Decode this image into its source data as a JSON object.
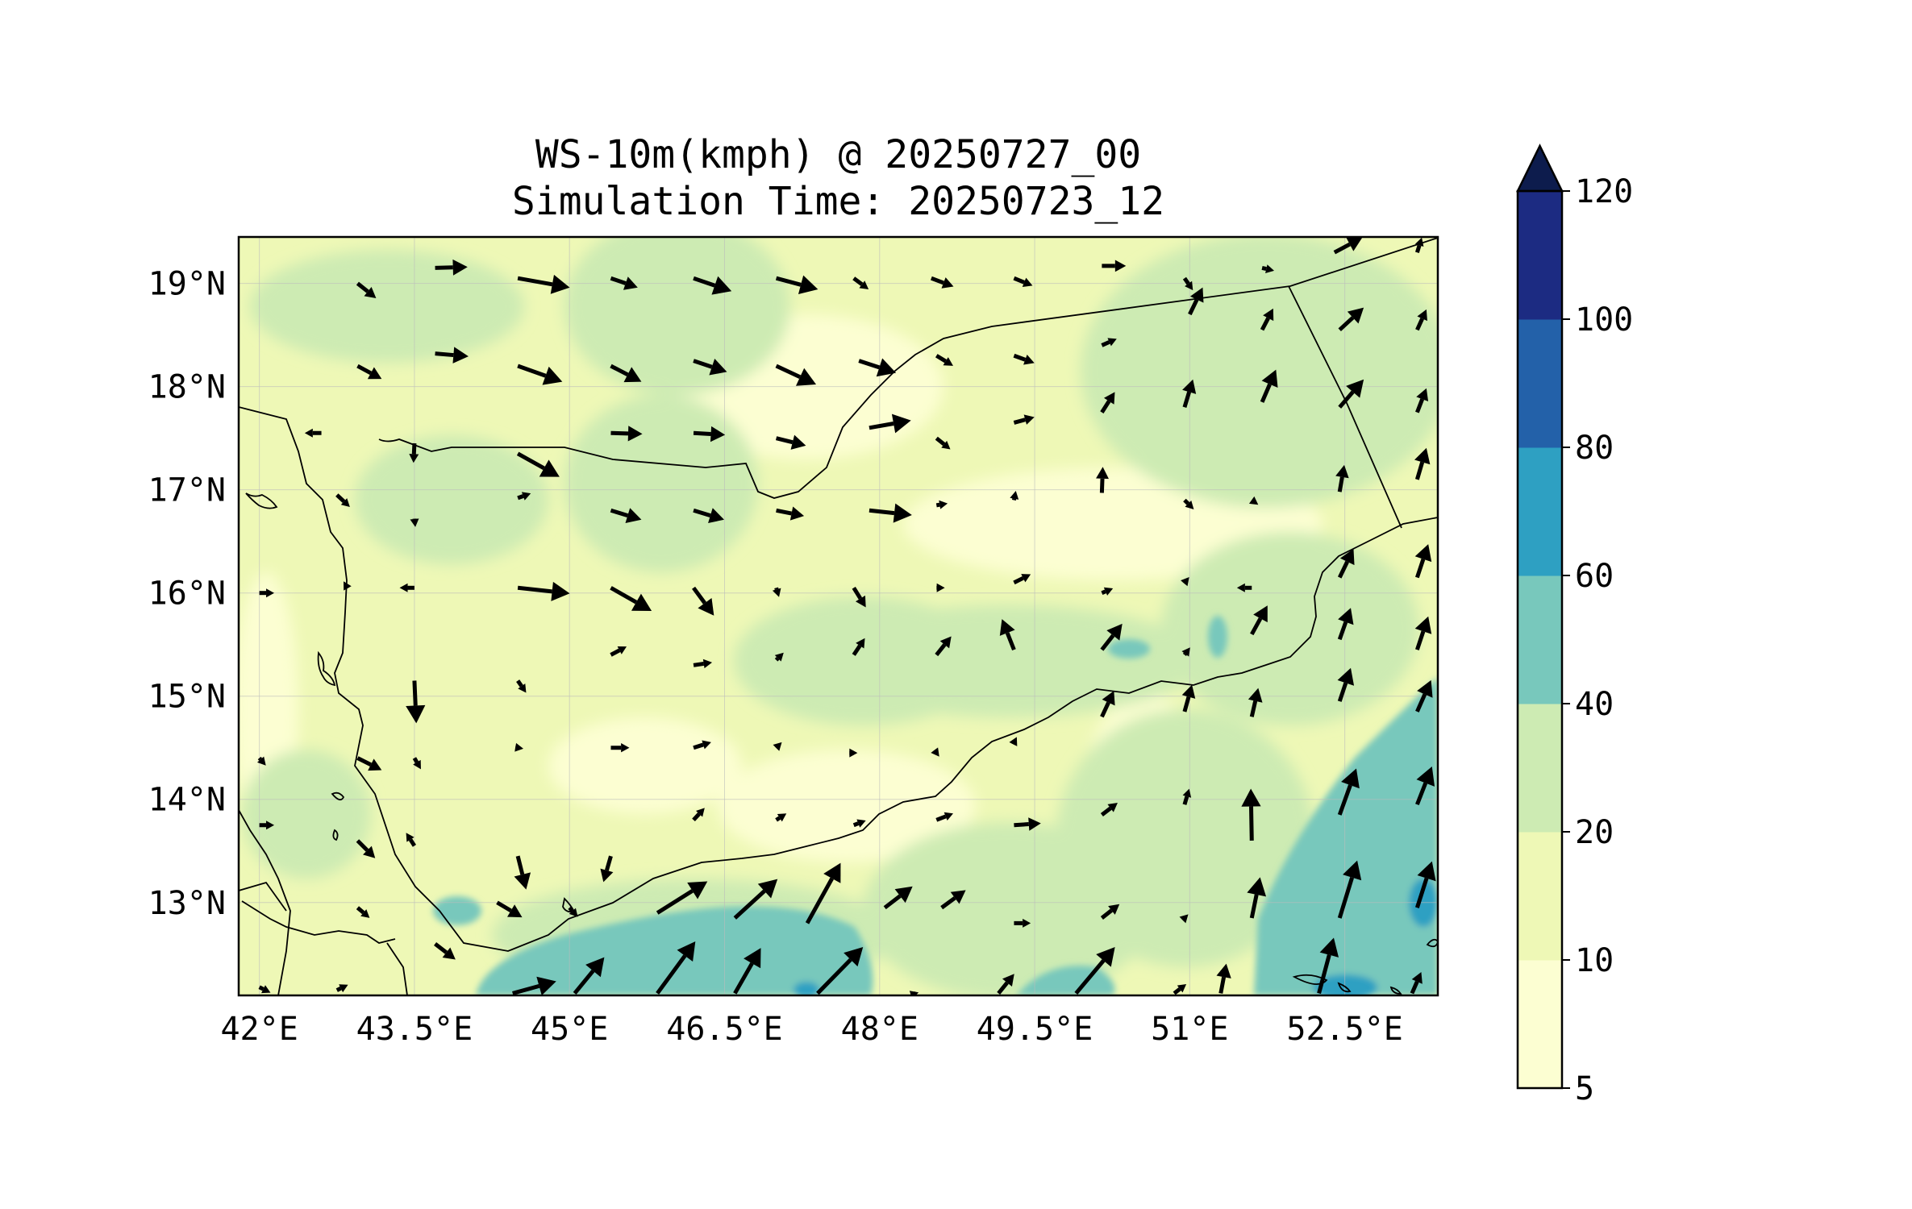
{
  "title": "WS-10m(kmph) @ 20250727_00",
  "subtitle": "Simulation Time: 20250723_12",
  "map": {
    "lon_range": [
      41.8,
      53.4
    ],
    "lat_range": [
      12.1,
      19.45
    ],
    "x_ticks": [
      "42°E",
      "43.5°E",
      "45°E",
      "46.5°E",
      "48°E",
      "49.5°E",
      "51°E",
      "52.5°E"
    ],
    "x_tick_values": [
      42,
      43.5,
      45,
      46.5,
      48,
      49.5,
      51,
      52.5
    ],
    "y_ticks": [
      "19°N",
      "18°N",
      "17°N",
      "16°N",
      "15°N",
      "14°N",
      "13°N"
    ],
    "y_tick_values": [
      19,
      18,
      17,
      16,
      15,
      14,
      13
    ],
    "gridlines": true
  },
  "colorbar": {
    "levels": [
      5,
      10,
      20,
      40,
      60,
      80,
      100,
      120
    ],
    "labels": [
      "5",
      "10",
      "20",
      "40",
      "60",
      "80",
      "100",
      "120"
    ],
    "colors": [
      "#fcfed2",
      "#eef8b6",
      "#cdebb3",
      "#78c8bc",
      "#2ea0c2",
      "#2361a9",
      "#1c2b82"
    ],
    "extend_color": "#0d1c4d",
    "extend": "max"
  },
  "wind_vectors": [
    {
      "lon": 42.95,
      "lat": 19.0,
      "u": 2.0,
      "v": -1.6
    },
    {
      "lon": 43.7,
      "lat": 19.15,
      "u": 3.5,
      "v": 0.1
    },
    {
      "lon": 44.5,
      "lat": 19.05,
      "u": 5.6,
      "v": -1.0
    },
    {
      "lon": 45.4,
      "lat": 19.05,
      "u": 2.9,
      "v": -1.0
    },
    {
      "lon": 46.2,
      "lat": 19.05,
      "u": 4.1,
      "v": -1.4
    },
    {
      "lon": 47.0,
      "lat": 19.05,
      "u": 4.5,
      "v": -1.2
    },
    {
      "lon": 47.75,
      "lat": 19.05,
      "u": 1.6,
      "v": -1.2
    },
    {
      "lon": 48.5,
      "lat": 19.05,
      "u": 2.4,
      "v": -0.9
    },
    {
      "lon": 49.3,
      "lat": 19.05,
      "u": 2.0,
      "v": -0.8
    },
    {
      "lon": 50.15,
      "lat": 19.17,
      "u": 2.6,
      "v": 0.0
    },
    {
      "lon": 50.95,
      "lat": 19.05,
      "u": 0.9,
      "v": -1.3
    },
    {
      "lon": 51.7,
      "lat": 19.15,
      "u": 1.3,
      "v": -0.3
    },
    {
      "lon": 52.4,
      "lat": 19.3,
      "u": 3.0,
      "v": 1.6
    },
    {
      "lon": 53.2,
      "lat": 19.3,
      "u": 0.5,
      "v": 1.6
    },
    {
      "lon": 42.95,
      "lat": 18.2,
      "u": 2.6,
      "v": -1.4
    },
    {
      "lon": 43.7,
      "lat": 18.32,
      "u": 3.6,
      "v": -0.3
    },
    {
      "lon": 44.5,
      "lat": 18.2,
      "u": 4.8,
      "v": -1.7
    },
    {
      "lon": 45.4,
      "lat": 18.2,
      "u": 3.3,
      "v": -1.7
    },
    {
      "lon": 46.2,
      "lat": 18.25,
      "u": 3.6,
      "v": -1.2
    },
    {
      "lon": 47.0,
      "lat": 18.2,
      "u": 4.3,
      "v": -2.0
    },
    {
      "lon": 47.8,
      "lat": 18.25,
      "u": 4.0,
      "v": -1.3
    },
    {
      "lon": 48.55,
      "lat": 18.3,
      "u": 1.8,
      "v": -1.1
    },
    {
      "lon": 49.3,
      "lat": 18.3,
      "u": 2.2,
      "v": -0.8
    },
    {
      "lon": 50.15,
      "lat": 18.4,
      "u": 1.6,
      "v": 0.7
    },
    {
      "lon": 51.0,
      "lat": 18.7,
      "u": 1.4,
      "v": 2.9
    },
    {
      "lon": 51.7,
      "lat": 18.55,
      "u": 1.2,
      "v": 2.3
    },
    {
      "lon": 52.45,
      "lat": 18.55,
      "u": 2.6,
      "v": 2.4
    },
    {
      "lon": 53.2,
      "lat": 18.55,
      "u": 1.0,
      "v": 2.2
    },
    {
      "lon": 42.6,
      "lat": 17.55,
      "u": -1.8,
      "v": 0.0
    },
    {
      "lon": 43.5,
      "lat": 17.45,
      "u": -0.1,
      "v": -2.1
    },
    {
      "lon": 44.5,
      "lat": 17.35,
      "u": 4.5,
      "v": -2.5
    },
    {
      "lon": 45.4,
      "lat": 17.55,
      "u": 3.4,
      "v": -0.1
    },
    {
      "lon": 46.2,
      "lat": 17.55,
      "u": 3.4,
      "v": -0.2
    },
    {
      "lon": 47.0,
      "lat": 17.5,
      "u": 3.2,
      "v": -0.8
    },
    {
      "lon": 47.9,
      "lat": 17.6,
      "u": 4.5,
      "v": 0.8
    },
    {
      "lon": 48.55,
      "lat": 17.5,
      "u": 1.5,
      "v": -1.2
    },
    {
      "lon": 49.3,
      "lat": 17.65,
      "u": 2.2,
      "v": 0.6
    },
    {
      "lon": 50.15,
      "lat": 17.75,
      "u": 1.4,
      "v": 2.2
    },
    {
      "lon": 50.95,
      "lat": 17.8,
      "u": 0.9,
      "v": 3.0
    },
    {
      "lon": 51.7,
      "lat": 17.85,
      "u": 1.5,
      "v": 3.5
    },
    {
      "lon": 52.45,
      "lat": 17.8,
      "u": 2.6,
      "v": 3.0
    },
    {
      "lon": 53.2,
      "lat": 17.75,
      "u": 1.0,
      "v": 2.6
    },
    {
      "lon": 42.75,
      "lat": 16.95,
      "u": 1.4,
      "v": -1.3
    },
    {
      "lon": 43.5,
      "lat": 16.72,
      "u": 0.1,
      "v": -0.9
    },
    {
      "lon": 44.5,
      "lat": 16.92,
      "u": 1.4,
      "v": 0.5
    },
    {
      "lon": 45.4,
      "lat": 16.8,
      "u": 3.3,
      "v": -1.0
    },
    {
      "lon": 46.2,
      "lat": 16.8,
      "u": 3.3,
      "v": -1.0
    },
    {
      "lon": 47.0,
      "lat": 16.8,
      "u": 3.0,
      "v": -0.6
    },
    {
      "lon": 47.9,
      "lat": 16.8,
      "u": 4.6,
      "v": -0.5
    },
    {
      "lon": 48.55,
      "lat": 16.85,
      "u": 1.2,
      "v": 0.2
    },
    {
      "lon": 49.3,
      "lat": 16.9,
      "u": 0.2,
      "v": 1.0
    },
    {
      "lon": 50.15,
      "lat": 16.97,
      "u": 0.1,
      "v": 2.8
    },
    {
      "lon": 50.95,
      "lat": 16.9,
      "u": 1.0,
      "v": -1.0
    },
    {
      "lon": 51.6,
      "lat": 16.9,
      "u": 0.7,
      "v": -0.5
    },
    {
      "lon": 52.45,
      "lat": 16.98,
      "u": 0.5,
      "v": 2.9
    },
    {
      "lon": 53.2,
      "lat": 17.1,
      "u": 1.0,
      "v": 3.4
    },
    {
      "lon": 42.0,
      "lat": 16.0,
      "u": 1.6,
      "v": 0.0
    },
    {
      "lon": 42.85,
      "lat": 16.05,
      "u": -0.4,
      "v": 0.7
    },
    {
      "lon": 43.5,
      "lat": 16.05,
      "u": -1.6,
      "v": 0.0
    },
    {
      "lon": 44.5,
      "lat": 16.05,
      "u": 5.6,
      "v": -0.6
    },
    {
      "lon": 45.4,
      "lat": 16.05,
      "u": 4.4,
      "v": -2.5
    },
    {
      "lon": 46.2,
      "lat": 16.05,
      "u": 2.2,
      "v": -3.0
    },
    {
      "lon": 47.0,
      "lat": 16.05,
      "u": 0.3,
      "v": -1.0
    },
    {
      "lon": 47.75,
      "lat": 16.05,
      "u": 1.3,
      "v": -2.1
    },
    {
      "lon": 48.55,
      "lat": 16.05,
      "u": 0.9,
      "v": 0.0
    },
    {
      "lon": 49.3,
      "lat": 16.1,
      "u": 1.8,
      "v": 0.9
    },
    {
      "lon": 50.15,
      "lat": 16.0,
      "u": 1.2,
      "v": 0.5
    },
    {
      "lon": 50.95,
      "lat": 16.1,
      "u": 0.5,
      "v": 0.6
    },
    {
      "lon": 51.6,
      "lat": 16.05,
      "u": -1.6,
      "v": 0.0
    },
    {
      "lon": 52.45,
      "lat": 16.15,
      "u": 1.5,
      "v": 3.1
    },
    {
      "lon": 53.2,
      "lat": 16.15,
      "u": 1.2,
      "v": 3.6
    },
    {
      "lon": 43.5,
      "lat": 15.15,
      "u": 0.2,
      "v": -4.6
    },
    {
      "lon": 44.5,
      "lat": 15.15,
      "u": 0.9,
      "v": -1.3
    },
    {
      "lon": 45.4,
      "lat": 15.4,
      "u": 1.7,
      "v": 0.9
    },
    {
      "lon": 46.2,
      "lat": 15.3,
      "u": 2.0,
      "v": 0.3
    },
    {
      "lon": 47.0,
      "lat": 15.35,
      "u": 0.8,
      "v": 0.8
    },
    {
      "lon": 47.75,
      "lat": 15.4,
      "u": 1.2,
      "v": 1.8
    },
    {
      "lon": 48.55,
      "lat": 15.4,
      "u": 1.6,
      "v": 2.0
    },
    {
      "lon": 49.3,
      "lat": 15.45,
      "u": -1.3,
      "v": 3.3
    },
    {
      "lon": 50.15,
      "lat": 15.45,
      "u": 2.2,
      "v": 2.8
    },
    {
      "lon": 50.95,
      "lat": 15.4,
      "u": 0.6,
      "v": 0.8
    },
    {
      "lon": 51.6,
      "lat": 15.6,
      "u": 1.7,
      "v": 3.1
    },
    {
      "lon": 52.45,
      "lat": 15.55,
      "u": 1.2,
      "v": 3.4
    },
    {
      "lon": 53.2,
      "lat": 15.45,
      "u": 1.2,
      "v": 3.6
    },
    {
      "lon": 42.0,
      "lat": 14.4,
      "u": 0.7,
      "v": -0.8
    },
    {
      "lon": 42.95,
      "lat": 14.4,
      "u": 2.6,
      "v": -1.3
    },
    {
      "lon": 43.5,
      "lat": 14.4,
      "u": 0.7,
      "v": -1.2
    },
    {
      "lon": 44.5,
      "lat": 14.5,
      "u": 0.6,
      "v": -0.1
    },
    {
      "lon": 45.4,
      "lat": 14.5,
      "u": 2.0,
      "v": 0.0
    },
    {
      "lon": 46.2,
      "lat": 14.5,
      "u": 1.9,
      "v": 0.6
    },
    {
      "lon": 47.0,
      "lat": 14.5,
      "u": 0.6,
      "v": 0.6
    },
    {
      "lon": 47.75,
      "lat": 14.45,
      "u": 0.4,
      "v": 0.0
    },
    {
      "lon": 48.55,
      "lat": 14.45,
      "u": 0.3,
      "v": -0.4
    },
    {
      "lon": 49.3,
      "lat": 14.55,
      "u": 0.3,
      "v": 0.6
    },
    {
      "lon": 50.15,
      "lat": 14.8,
      "u": 1.3,
      "v": 2.8
    },
    {
      "lon": 50.95,
      "lat": 14.85,
      "u": 0.8,
      "v": 2.9
    },
    {
      "lon": 51.6,
      "lat": 14.8,
      "u": 0.7,
      "v": 3.1
    },
    {
      "lon": 52.45,
      "lat": 14.95,
      "u": 1.2,
      "v": 3.6
    },
    {
      "lon": 53.2,
      "lat": 14.85,
      "u": 1.5,
      "v": 3.4
    },
    {
      "lon": 42.0,
      "lat": 13.75,
      "u": 1.6,
      "v": 0.0
    },
    {
      "lon": 42.95,
      "lat": 13.6,
      "u": 1.9,
      "v": -1.9
    },
    {
      "lon": 43.5,
      "lat": 13.55,
      "u": -0.9,
      "v": 1.4
    },
    {
      "lon": 44.5,
      "lat": 13.45,
      "u": 0.9,
      "v": -3.6
    },
    {
      "lon": 45.4,
      "lat": 13.45,
      "u": -0.8,
      "v": -2.8
    },
    {
      "lon": 46.2,
      "lat": 13.8,
      "u": 1.2,
      "v": 1.3
    },
    {
      "lon": 47.0,
      "lat": 13.8,
      "u": 1.1,
      "v": 0.7
    },
    {
      "lon": 47.75,
      "lat": 13.75,
      "u": 1.3,
      "v": 0.5
    },
    {
      "lon": 48.55,
      "lat": 13.8,
      "u": 1.8,
      "v": 0.7
    },
    {
      "lon": 49.3,
      "lat": 13.75,
      "u": 2.9,
      "v": 0.2
    },
    {
      "lon": 50.15,
      "lat": 13.85,
      "u": 1.7,
      "v": 1.3
    },
    {
      "lon": 50.95,
      "lat": 13.95,
      "u": 0.5,
      "v": 1.7
    },
    {
      "lon": 51.6,
      "lat": 13.6,
      "u": -0.1,
      "v": 5.6
    },
    {
      "lon": 52.45,
      "lat": 13.85,
      "u": 1.8,
      "v": 5.0
    },
    {
      "lon": 53.2,
      "lat": 13.95,
      "u": 1.6,
      "v": 4.1
    },
    {
      "lon": 42.95,
      "lat": 12.95,
      "u": 1.3,
      "v": -1.1
    },
    {
      "lon": 43.7,
      "lat": 12.6,
      "u": 2.2,
      "v": -1.7
    },
    {
      "lon": 44.3,
      "lat": 13.0,
      "u": 2.7,
      "v": -1.6
    },
    {
      "lon": 45.0,
      "lat": 12.95,
      "u": 0.9,
      "v": -1.0
    },
    {
      "lon": 45.85,
      "lat": 12.9,
      "u": 5.4,
      "v": 3.4
    },
    {
      "lon": 46.6,
      "lat": 12.85,
      "u": 4.6,
      "v": 4.2
    },
    {
      "lon": 47.3,
      "lat": 12.8,
      "u": 3.6,
      "v": 6.5
    },
    {
      "lon": 48.05,
      "lat": 12.95,
      "u": 3.0,
      "v": 2.3
    },
    {
      "lon": 48.6,
      "lat": 12.95,
      "u": 2.6,
      "v": 1.9
    },
    {
      "lon": 49.3,
      "lat": 12.8,
      "u": 1.8,
      "v": 0.0
    },
    {
      "lon": 50.15,
      "lat": 12.85,
      "u": 1.9,
      "v": 1.5
    },
    {
      "lon": 50.95,
      "lat": 12.85,
      "u": 0.4,
      "v": 0.4
    },
    {
      "lon": 51.6,
      "lat": 12.85,
      "u": 0.9,
      "v": 4.4
    },
    {
      "lon": 52.45,
      "lat": 12.85,
      "u": 1.9,
      "v": 6.2
    },
    {
      "lon": 53.2,
      "lat": 12.95,
      "u": 1.6,
      "v": 5.0
    },
    {
      "lon": 42.0,
      "lat": 12.18,
      "u": 1.2,
      "v": -0.6
    },
    {
      "lon": 42.75,
      "lat": 12.15,
      "u": 1.2,
      "v": 0.6
    },
    {
      "lon": 44.45,
      "lat": 12.12,
      "u": 4.7,
      "v": 1.3
    },
    {
      "lon": 45.05,
      "lat": 12.12,
      "u": 3.2,
      "v": 3.9
    },
    {
      "lon": 45.85,
      "lat": 12.12,
      "u": 4.1,
      "v": 5.6
    },
    {
      "lon": 46.6,
      "lat": 12.12,
      "u": 2.8,
      "v": 4.9
    },
    {
      "lon": 47.4,
      "lat": 12.12,
      "u": 4.9,
      "v": 5.0
    },
    {
      "lon": 48.35,
      "lat": 12.12,
      "u": 0.3,
      "v": 0.1
    },
    {
      "lon": 49.15,
      "lat": 12.12,
      "u": 1.7,
      "v": 2.1
    },
    {
      "lon": 49.9,
      "lat": 12.12,
      "u": 4.2,
      "v": 5.0
    },
    {
      "lon": 50.85,
      "lat": 12.12,
      "u": 1.3,
      "v": 1.0
    },
    {
      "lon": 51.3,
      "lat": 12.12,
      "u": 0.6,
      "v": 3.2
    },
    {
      "lon": 52.25,
      "lat": 12.12,
      "u": 1.6,
      "v": 6.0
    },
    {
      "lon": 53.15,
      "lat": 12.12,
      "u": 1.0,
      "v": 2.3
    }
  ]
}
